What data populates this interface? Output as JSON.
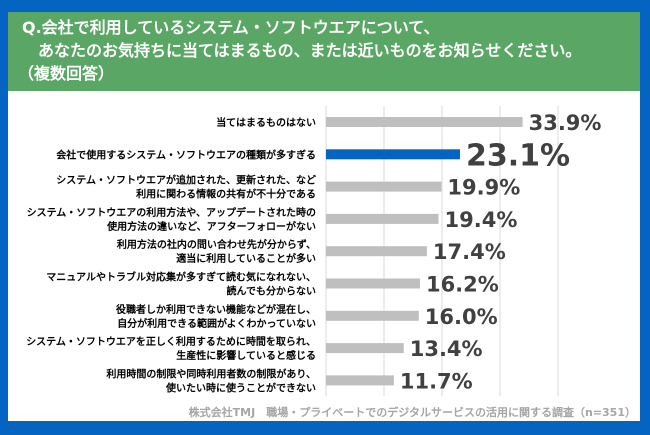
{
  "header": {
    "line1": "Q.会社で利用しているシステム・ソフトウエアについて、",
    "line2": "あなたのお気持ちに当てはまるもの、または近いものをお知らせください。",
    "line3": "（複数回答）"
  },
  "footer": "株式会社TMJ　職場・プライベートでのデジタルサービスの活用に関する調査（n=351）",
  "colors": {
    "frame": "#0563C1",
    "header": "#5AA665",
    "highlight": "#0563C1",
    "bar": "#BFBFBF",
    "grid": "#D9D9D9",
    "label": "#404040"
  },
  "chart_data": {
    "type": "bar",
    "orientation": "horizontal",
    "categories": [
      [
        "当てはまるものはない"
      ],
      [
        "会社で使用するシステム・ソフトウエアの種類が多すぎる"
      ],
      [
        "システム・ソフトウエアが追加された、更新された、など",
        "利用に関わる情報の共有が不十分である"
      ],
      [
        "システム・ソフトウエアの利用方法や、アップデートされた時の",
        "使用方法の違いなど、アフターフォローがない"
      ],
      [
        "利用方法の社内の問い合わせ先が分からず、",
        "適当に利用していることが多い"
      ],
      [
        "マニュアルやトラブル対応集が多すぎて読む気になれない、",
        "読んでも分からない"
      ],
      [
        "役職者しか利用できない機能などが混在し、",
        "自分が利用できる範囲がよくわかっていない"
      ],
      [
        "システム・ソフトウエアを正しく利用するために時間を取られ、",
        "生産性に影響していると感じる"
      ],
      [
        "利用時間の制限や同時利用者数の制限があり、",
        "使いたい時に使うことができない"
      ]
    ],
    "values": [
      33.9,
      23.1,
      19.9,
      19.4,
      17.4,
      16.2,
      16.0,
      13.4,
      11.7
    ],
    "value_labels": [
      "33.9%",
      "23.1%",
      "19.9%",
      "19.4%",
      "17.4%",
      "16.2%",
      "16.0%",
      "13.4%",
      "11.7%"
    ],
    "highlight_index": 1,
    "xlim": [
      0,
      40
    ],
    "grid_step": 10,
    "grid": true,
    "unit": "%"
  }
}
